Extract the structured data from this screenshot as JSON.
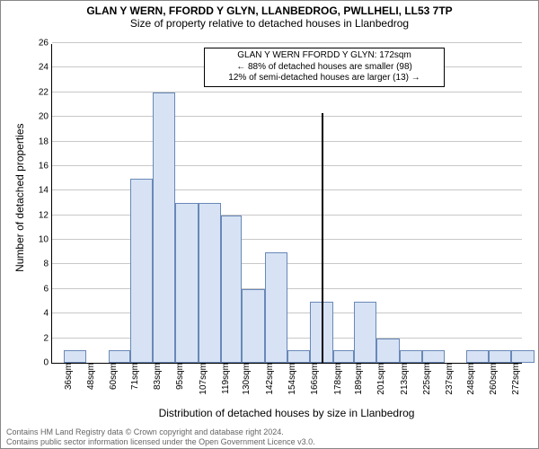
{
  "title": "GLAN Y WERN, FFORDD Y GLYN, LLANBEDROG, PWLLHELI, LL53 7TP",
  "subtitle": "Size of property relative to detached houses in Llanbedrog",
  "xlabel": "Distribution of detached houses by size in Llanbedrog",
  "ylabel": "Number of detached properties",
  "footer_line1": "Contains HM Land Registry data © Crown copyright and database right 2024.",
  "footer_line2": "Contains public sector information licensed under the Open Government Licence v3.0.",
  "annotation": {
    "line1": "GLAN Y WERN FFORDD Y GLYN: 172sqm",
    "line2": "← 88% of detached houses are smaller (98)",
    "line3": "12% of semi-detached houses are larger (13) →"
  },
  "chart": {
    "type": "histogram",
    "ylim": [
      0,
      26
    ],
    "ytick_step": 2,
    "xticks": [
      36,
      48,
      60,
      71,
      83,
      95,
      107,
      119,
      130,
      142,
      154,
      166,
      178,
      189,
      201,
      213,
      225,
      237,
      248,
      260,
      272
    ],
    "xtick_suffix": "sqm",
    "bars": [
      1,
      0,
      1,
      15,
      22,
      13,
      13,
      12,
      6,
      9,
      1,
      5,
      1,
      5,
      2,
      1,
      1,
      0,
      1,
      1,
      1
    ],
    "bar_fill": "#d7e3f4",
    "bar_stroke": "#6988b8",
    "grid_color": "#c8c8c8",
    "marker_x": 172,
    "xlim": [
      30,
      278
    ],
    "tick_fontsize": 10,
    "title_fontsize": 12,
    "subtitle_fontsize": 12,
    "label_fontsize": 12
  }
}
